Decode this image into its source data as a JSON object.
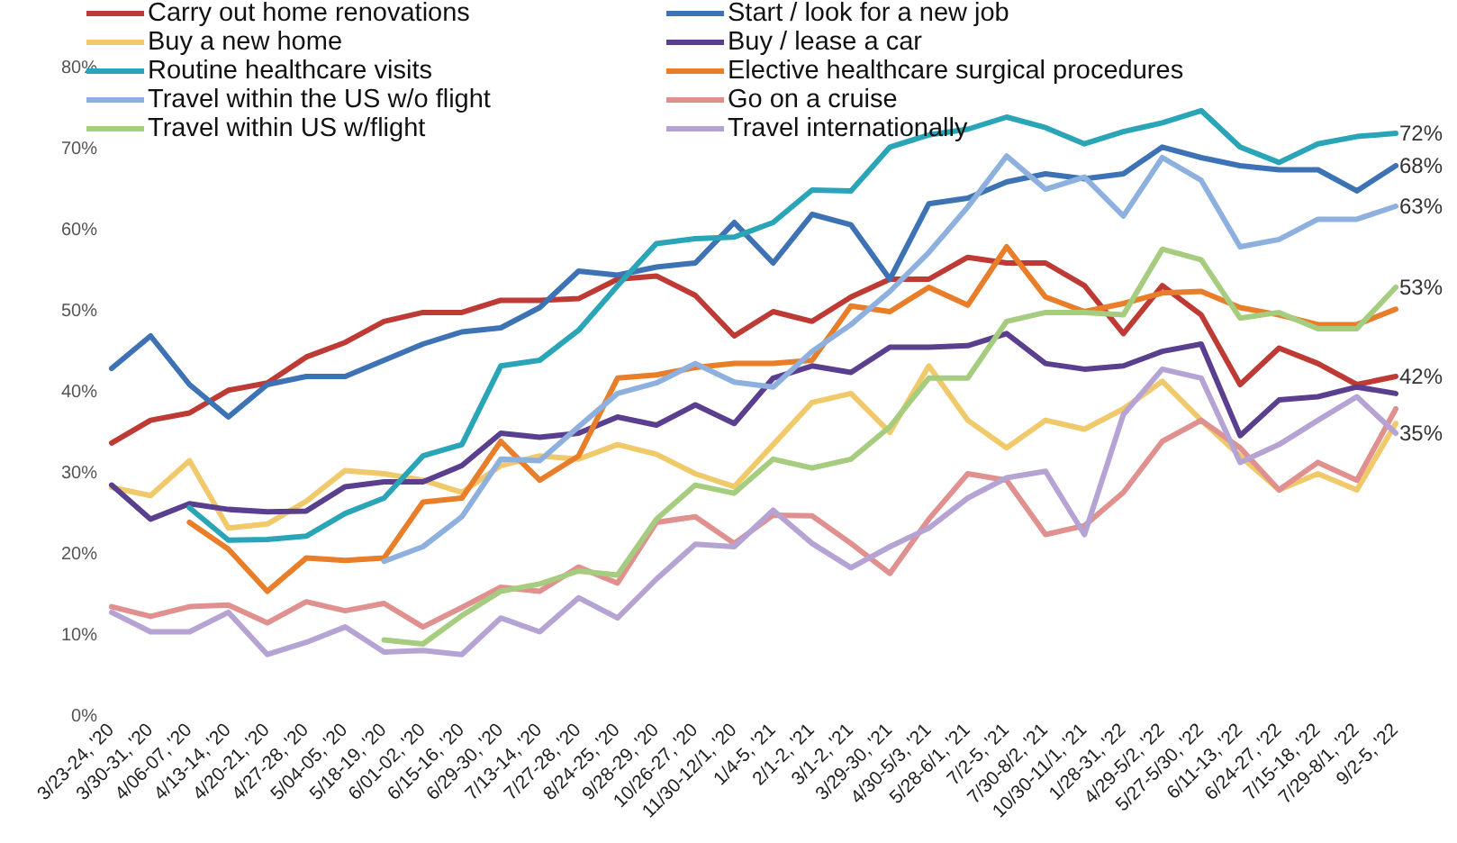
{
  "chart_data": {
    "type": "line",
    "legend": "top",
    "marker": "none",
    "grid": false,
    "categories": [
      "3/23-24, '20",
      "3/30-31, '20",
      "4/06-07, '20",
      "4/13-14, '20",
      "4/20-21, '20",
      "4/27-28, '20",
      "5/04-05, '20",
      "5/18-19, '20",
      "6/01-02, '20",
      "6/15-16, '20",
      "6/29-30, '20",
      "7/13-14, '20",
      "7/27-28, '20",
      "8/24-25, '20",
      "9/28-29, '20",
      "10/26-27, '20",
      "11/30-12/1, '20",
      "1/4-5, '21",
      "2/1-2, '21",
      "3/1-2, '21",
      "3/29-30, '21",
      "4/30-5/3, '21",
      "5/28-6/1, '21",
      "7/2-5, '21",
      "7/30-8/2, '21",
      "10/30-11/1, '21",
      "1/28-31, '22",
      "4/29-5/2, '22",
      "5/27-5/30, '22",
      "6/11-13, '22",
      "6/24-27, '22",
      "7/15-18, '22",
      "7/29-8/1, '22",
      "9/2-5, '22"
    ],
    "ylim": [
      0,
      80
    ],
    "yticks": [
      {
        "value": 0,
        "label": "0%"
      },
      {
        "value": 10,
        "label": "10%"
      },
      {
        "value": 20,
        "label": "20%"
      },
      {
        "value": 30,
        "label": "30%"
      },
      {
        "value": 40,
        "label": "40%"
      },
      {
        "value": 50,
        "label": "50%"
      },
      {
        "value": 60,
        "label": "60%"
      },
      {
        "value": 70,
        "label": "70%"
      },
      {
        "value": 80,
        "label": "80%"
      }
    ],
    "series": [
      {
        "name": "Carry out home renovations",
        "color": "#be3a34",
        "values": [
          33.8,
          36.6,
          37.5,
          40.3,
          41.2,
          44.4,
          46.2,
          48.8,
          49.9,
          49.9,
          51.4,
          51.4,
          51.6,
          54,
          54.4,
          52,
          47,
          50,
          48.8,
          51.8,
          54,
          54,
          56.7,
          56,
          56,
          53.2,
          47.3,
          53.2,
          49.6,
          41,
          45.5,
          43.6,
          41,
          42
        ],
        "value_labels": [
          null,
          null,
          null,
          null,
          null,
          null,
          null,
          null,
          null,
          null,
          null,
          null,
          null,
          null,
          null,
          null,
          null,
          null,
          null,
          null,
          null,
          null,
          null,
          null,
          null,
          null,
          null,
          null,
          null,
          null,
          null,
          null,
          null,
          "42%"
        ]
      },
      {
        "name": "Start / look for a new job",
        "color": "#3d72b4",
        "values": [
          43,
          47,
          41,
          37,
          41,
          42,
          42,
          44,
          46,
          47.5,
          48,
          50.5,
          55,
          54.5,
          55.5,
          56,
          61,
          56,
          62,
          60.7,
          54,
          63.3,
          64,
          66,
          67,
          66.4,
          67,
          70.3,
          69,
          68,
          67.5,
          67.5,
          64.9,
          68
        ],
        "value_labels": [
          null,
          null,
          null,
          null,
          null,
          null,
          null,
          null,
          null,
          null,
          null,
          null,
          null,
          null,
          null,
          null,
          null,
          null,
          null,
          null,
          null,
          null,
          null,
          null,
          null,
          null,
          null,
          null,
          null,
          null,
          null,
          null,
          null,
          "68%"
        ]
      },
      {
        "name": "Buy a new home",
        "color": "#f0c96a",
        "values": [
          28.3,
          27.3,
          31.6,
          23.3,
          23.8,
          26.6,
          30.4,
          30,
          29.2,
          27.7,
          31,
          32.2,
          31.8,
          33.6,
          32.4,
          30,
          28.4,
          33.6,
          38.8,
          39.9,
          35.1,
          43.3,
          36.6,
          33.2,
          36.6,
          35.5,
          38,
          41.4,
          36.6,
          32.2,
          28,
          30,
          28,
          36.2
        ]
      },
      {
        "name": "Buy / lease a car",
        "color": "#5b3f8f",
        "values": [
          28.6,
          24.4,
          26.3,
          25.6,
          25.3,
          25.4,
          28.4,
          29,
          29,
          31,
          35,
          34.5,
          35,
          37,
          36,
          38.5,
          36.2,
          41.8,
          43.3,
          42.5,
          45.6,
          45.6,
          45.8,
          47.3,
          43.6,
          42.9,
          43.3,
          45.1,
          46,
          34.7,
          39.1,
          39.5,
          40.7,
          39.9
        ]
      },
      {
        "name": "Routine healthcare visits",
        "color": "#2aa5b8",
        "values": [
          null,
          null,
          25.8,
          21.8,
          21.9,
          22.3,
          25.1,
          27,
          32.2,
          33.6,
          43.3,
          44,
          47.7,
          53.2,
          58.4,
          59,
          59.2,
          61,
          65,
          64.9,
          70.3,
          71.8,
          72.5,
          74,
          72.7,
          70.7,
          72.2,
          73.3,
          74.8,
          70.3,
          68.4,
          70.7,
          71.6,
          72
        ],
        "value_labels": [
          null,
          null,
          null,
          null,
          null,
          null,
          null,
          null,
          null,
          null,
          null,
          null,
          null,
          null,
          null,
          null,
          null,
          null,
          null,
          null,
          null,
          null,
          null,
          null,
          null,
          null,
          null,
          null,
          null,
          null,
          null,
          null,
          null,
          "72%"
        ]
      },
      {
        "name": "Elective healthcare surgical procedures",
        "color": "#e87d2a",
        "values": [
          null,
          null,
          24,
          20.7,
          15.5,
          19.6,
          19.3,
          19.6,
          26.5,
          27,
          34,
          29.2,
          32.2,
          41.8,
          42.2,
          43.1,
          43.6,
          43.6,
          44,
          50.7,
          50,
          53,
          50.8,
          58,
          51.8,
          50,
          51,
          52.3,
          52.5,
          50.5,
          49.6,
          48.4,
          48.4,
          50.3
        ]
      },
      {
        "name": "Travel within the US w/o flight",
        "color": "#8eb0de",
        "values": [
          null,
          null,
          null,
          null,
          null,
          null,
          null,
          19.2,
          21,
          24.7,
          31.8,
          31.6,
          35.8,
          39.9,
          41.2,
          43.6,
          41.3,
          40.7,
          45.1,
          48.4,
          52.5,
          57.3,
          62.9,
          69.2,
          65.1,
          66.6,
          61.8,
          69,
          66.2,
          58,
          58.9,
          61.4,
          61.4,
          63
        ],
        "value_labels": [
          null,
          null,
          null,
          null,
          null,
          null,
          null,
          null,
          null,
          null,
          null,
          null,
          null,
          null,
          null,
          null,
          null,
          null,
          null,
          null,
          null,
          null,
          null,
          null,
          null,
          null,
          null,
          null,
          null,
          null,
          null,
          null,
          null,
          "63%"
        ]
      },
      {
        "name": "Go on a cruise",
        "color": "#e0908e",
        "values": [
          13.6,
          12.4,
          13.6,
          13.8,
          11.6,
          14.2,
          13.1,
          14,
          11.1,
          13.5,
          16,
          15.5,
          18.5,
          16.5,
          24,
          24.7,
          21.4,
          24.9,
          24.8,
          21.4,
          17.7,
          24.4,
          30,
          29.2,
          22.5,
          23.6,
          27.7,
          34,
          36.6,
          33.2,
          28,
          31.4,
          29.2,
          38
        ]
      },
      {
        "name": "Travel within US w/flight",
        "color": "#a6cc7f",
        "values": [
          null,
          null,
          null,
          null,
          null,
          null,
          null,
          9.5,
          9,
          12.5,
          15.5,
          16.4,
          18,
          17.5,
          24.4,
          28.6,
          27.6,
          31.8,
          30.7,
          31.8,
          35.8,
          41.8,
          41.8,
          48.8,
          49.9,
          49.9,
          49.6,
          57.7,
          56.4,
          49.2,
          49.9,
          47.9,
          47.9,
          53
        ],
        "value_labels": [
          null,
          null,
          null,
          null,
          null,
          null,
          null,
          null,
          null,
          null,
          null,
          null,
          null,
          null,
          null,
          null,
          null,
          null,
          null,
          null,
          null,
          null,
          null,
          null,
          null,
          null,
          null,
          null,
          null,
          null,
          null,
          null,
          null,
          "53%"
        ]
      },
      {
        "name": "Travel internationally",
        "color": "#b4a3d3",
        "values": [
          12.9,
          10.5,
          10.5,
          12.9,
          7.7,
          9.2,
          11.1,
          8,
          8.2,
          7.7,
          12.2,
          10.5,
          14.7,
          12.2,
          17,
          21.3,
          21,
          25.5,
          21.4,
          18.4,
          21,
          23.3,
          27,
          29.5,
          30.3,
          22.5,
          37.3,
          42.9,
          41.8,
          31.4,
          33.6,
          36.6,
          39.5,
          35
        ],
        "value_labels": [
          null,
          null,
          null,
          null,
          null,
          null,
          null,
          null,
          null,
          null,
          null,
          null,
          null,
          null,
          null,
          null,
          null,
          null,
          null,
          null,
          null,
          null,
          null,
          null,
          null,
          null,
          null,
          null,
          null,
          null,
          null,
          null,
          null,
          "35%"
        ]
      }
    ]
  }
}
